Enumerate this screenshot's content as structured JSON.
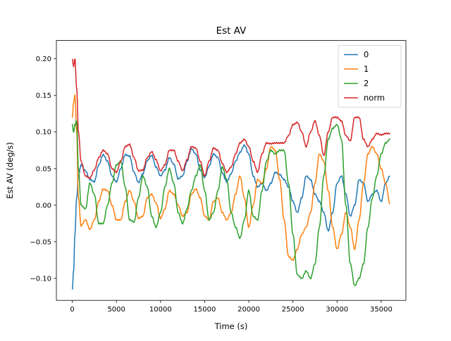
{
  "chart_data": {
    "type": "line",
    "title": "Est AV",
    "xlabel": "Time (s)",
    "ylabel": "Est AV (deg/s)",
    "xlim": [
      -1800,
      37800
    ],
    "ylim": [
      -0.13,
      0.225
    ],
    "xticks": [
      0,
      5000,
      10000,
      15000,
      20000,
      25000,
      30000,
      35000
    ],
    "xtick_labels": [
      "0",
      "5000",
      "10000",
      "15000",
      "20000",
      "25000",
      "30000",
      "35000"
    ],
    "yticks": [
      -0.1,
      -0.05,
      0.0,
      0.05,
      0.1,
      0.15,
      0.2
    ],
    "ytick_labels": [
      "−0.10",
      "−0.05",
      "0.00",
      "0.05",
      "0.10",
      "0.15",
      "0.20"
    ],
    "grid": false,
    "legend_position": "upper right",
    "series": [
      {
        "name": "0",
        "color": "#1f77b4",
        "x": [
          0,
          150,
          300,
          500,
          700,
          1000,
          1500,
          2000,
          2500,
          3000,
          3500,
          4000,
          4500,
          5000,
          5500,
          6000,
          6500,
          7000,
          7500,
          8000,
          8500,
          9000,
          9500,
          10000,
          10500,
          11000,
          11500,
          12000,
          12500,
          13000,
          13500,
          14000,
          14500,
          15000,
          15500,
          16000,
          16500,
          17000,
          17500,
          18000,
          18500,
          19000,
          19500,
          20000,
          20500,
          21000,
          21500,
          22000,
          22500,
          23000,
          23500,
          24000,
          24500,
          25000,
          25500,
          26000,
          26500,
          27000,
          27500,
          28000,
          28500,
          29000,
          29500,
          30000,
          30500,
          31000,
          31500,
          32000,
          32500,
          33000,
          33500,
          34000,
          34500,
          35000,
          35500,
          36000
        ],
        "values": [
          -0.115,
          -0.09,
          -0.04,
          0.01,
          0.04,
          0.055,
          0.047,
          0.035,
          0.032,
          0.055,
          0.069,
          0.06,
          0.04,
          0.032,
          0.05,
          0.069,
          0.067,
          0.045,
          0.031,
          0.043,
          0.061,
          0.068,
          0.052,
          0.04,
          0.048,
          0.065,
          0.056,
          0.036,
          0.04,
          0.06,
          0.077,
          0.07,
          0.048,
          0.038,
          0.053,
          0.07,
          0.065,
          0.044,
          0.032,
          0.043,
          0.06,
          0.072,
          0.082,
          0.07,
          0.04,
          0.025,
          0.03,
          0.02,
          0.03,
          0.045,
          0.042,
          0.035,
          0.025,
          0.005,
          -0.01,
          0.01,
          0.04,
          0.035,
          0.015,
          0.005,
          -0.01,
          -0.035,
          -0.01,
          0.03,
          0.04,
          0.015,
          -0.015,
          0.0,
          0.035,
          0.03,
          0.005,
          0.015,
          0.02,
          0.005,
          0.03,
          0.04
        ]
      },
      {
        "name": "1",
        "color": "#ff7f0e",
        "x": [
          0,
          150,
          300,
          500,
          700,
          1000,
          1500,
          2000,
          2500,
          3000,
          3500,
          4000,
          4500,
          5000,
          5500,
          6000,
          6500,
          7000,
          7500,
          8000,
          8500,
          9000,
          9500,
          10000,
          10500,
          11000,
          11500,
          12000,
          12500,
          13000,
          13500,
          14000,
          14500,
          15000,
          15500,
          16000,
          16500,
          17000,
          17500,
          18000,
          18500,
          19000,
          19500,
          20000,
          20500,
          21000,
          21500,
          22000,
          22500,
          23000,
          23500,
          24000,
          24500,
          25000,
          25500,
          26000,
          26500,
          27000,
          27500,
          28000,
          28500,
          29000,
          29500,
          30000,
          30500,
          31000,
          31500,
          32000,
          32500,
          33000,
          33500,
          34000,
          34500,
          35000,
          35500,
          36000
        ],
        "values": [
          0.12,
          0.14,
          0.15,
          0.1,
          0.01,
          -0.028,
          -0.02,
          -0.033,
          -0.02,
          0.005,
          0.022,
          0.02,
          0.0,
          -0.02,
          -0.02,
          0.005,
          0.02,
          0.005,
          -0.018,
          -0.015,
          0.01,
          0.015,
          0.003,
          -0.018,
          -0.005,
          0.02,
          0.015,
          0.0,
          -0.015,
          -0.01,
          0.015,
          0.022,
          0.01,
          -0.015,
          -0.02,
          0.005,
          0.01,
          -0.01,
          -0.02,
          -0.01,
          0.015,
          0.04,
          0.01,
          -0.03,
          0.0,
          0.035,
          0.03,
          0.05,
          0.08,
          0.075,
          0.035,
          -0.02,
          -0.07,
          -0.075,
          -0.06,
          -0.04,
          -0.03,
          -0.01,
          0.03,
          0.07,
          0.06,
          0.02,
          -0.03,
          -0.06,
          -0.04,
          -0.01,
          -0.03,
          -0.06,
          -0.02,
          0.03,
          0.07,
          0.08,
          0.07,
          0.05,
          0.03,
          0.002
        ]
      },
      {
        "name": "2",
        "color": "#2ca02c",
        "x": [
          0,
          150,
          300,
          500,
          700,
          1000,
          1500,
          2000,
          2500,
          3000,
          3500,
          4000,
          4500,
          5000,
          5500,
          6000,
          6500,
          7000,
          7500,
          8000,
          8500,
          9000,
          9500,
          10000,
          10500,
          11000,
          11500,
          12000,
          12500,
          13000,
          13500,
          14000,
          14500,
          15000,
          15500,
          16000,
          16500,
          17000,
          17500,
          18000,
          18500,
          19000,
          19500,
          20000,
          20500,
          21000,
          21500,
          22000,
          22500,
          23000,
          23500,
          24000,
          24500,
          25000,
          25500,
          26000,
          26500,
          27000,
          27500,
          28000,
          28500,
          29000,
          29500,
          30000,
          30500,
          31000,
          31500,
          32000,
          32500,
          33000,
          33500,
          34000,
          34500,
          35000,
          35500,
          36000
        ],
        "values": [
          0.11,
          0.1,
          0.11,
          0.115,
          0.05,
          0.0,
          -0.005,
          0.03,
          0.015,
          -0.025,
          -0.025,
          0.0,
          0.03,
          0.055,
          0.06,
          0.025,
          -0.02,
          -0.023,
          0.01,
          0.04,
          0.025,
          -0.015,
          -0.03,
          -0.01,
          0.025,
          0.05,
          0.03,
          -0.01,
          -0.025,
          -0.005,
          0.02,
          0.04,
          0.055,
          0.02,
          -0.02,
          -0.01,
          0.02,
          0.052,
          0.035,
          -0.01,
          -0.03,
          -0.045,
          -0.02,
          0.02,
          -0.015,
          -0.02,
          0.02,
          0.06,
          0.075,
          0.07,
          0.075,
          0.075,
          0.03,
          -0.04,
          -0.095,
          -0.1,
          -0.09,
          -0.1,
          -0.08,
          -0.03,
          0.04,
          0.09,
          0.105,
          0.11,
          0.09,
          0.0,
          -0.08,
          -0.11,
          -0.1,
          -0.08,
          -0.03,
          0.01,
          0.04,
          0.07,
          0.085,
          0.09
        ]
      },
      {
        "name": "norm",
        "color": "#d62728",
        "x": [
          0,
          150,
          300,
          500,
          700,
          1000,
          1500,
          2000,
          2500,
          3000,
          3500,
          4000,
          4500,
          5000,
          5500,
          6000,
          6500,
          7000,
          7500,
          8000,
          8500,
          9000,
          9500,
          10000,
          10500,
          11000,
          11500,
          12000,
          12500,
          13000,
          13500,
          14000,
          14500,
          15000,
          15500,
          16000,
          16500,
          17000,
          17500,
          18000,
          18500,
          19000,
          19500,
          20000,
          20500,
          21000,
          21500,
          22000,
          22500,
          23000,
          23500,
          24000,
          24500,
          25000,
          25500,
          26000,
          26500,
          27000,
          27500,
          28000,
          28500,
          29000,
          29500,
          30000,
          30500,
          31000,
          31500,
          32000,
          32500,
          33000,
          33500,
          34000,
          34500,
          35000,
          35500,
          36000
        ],
        "values": [
          0.2,
          0.19,
          0.2,
          0.16,
          0.1,
          0.06,
          0.04,
          0.037,
          0.048,
          0.065,
          0.075,
          0.07,
          0.05,
          0.045,
          0.06,
          0.08,
          0.083,
          0.065,
          0.047,
          0.048,
          0.065,
          0.073,
          0.062,
          0.047,
          0.055,
          0.075,
          0.075,
          0.06,
          0.047,
          0.062,
          0.08,
          0.078,
          0.06,
          0.04,
          0.06,
          0.078,
          0.075,
          0.057,
          0.045,
          0.052,
          0.07,
          0.085,
          0.09,
          0.08,
          0.06,
          0.045,
          0.07,
          0.085,
          0.084,
          0.085,
          0.085,
          0.085,
          0.095,
          0.11,
          0.113,
          0.1,
          0.08,
          0.1,
          0.115,
          0.095,
          0.068,
          0.1,
          0.12,
          0.12,
          0.115,
          0.095,
          0.088,
          0.12,
          0.12,
          0.09,
          0.08,
          0.09,
          0.098,
          0.096,
          0.098,
          0.098
        ]
      }
    ]
  }
}
